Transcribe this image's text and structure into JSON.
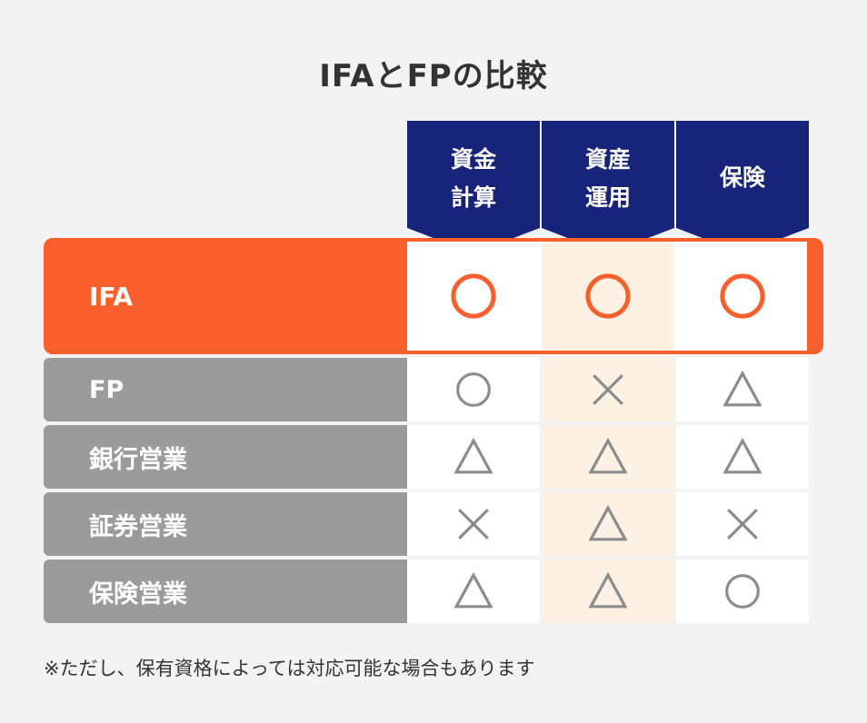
{
  "title": "IFAとFPの比較",
  "columns": [
    {
      "line1": "資金",
      "line2": "計算"
    },
    {
      "line1": "資産",
      "line2": "運用"
    },
    {
      "line1": "保険",
      "line2": ""
    }
  ],
  "rows": [
    {
      "label": "IFA",
      "marks": [
        "circle",
        "circle",
        "circle"
      ],
      "highlight": true
    },
    {
      "label": "FP",
      "marks": [
        "circle",
        "cross",
        "triangle"
      ]
    },
    {
      "label": "銀行営業",
      "marks": [
        "triangle",
        "triangle",
        "triangle"
      ]
    },
    {
      "label": "証券営業",
      "marks": [
        "cross",
        "triangle",
        "cross"
      ]
    },
    {
      "label": "保険営業",
      "marks": [
        "triangle",
        "triangle",
        "circle"
      ]
    }
  ],
  "note": "※ただし、保有資格によっては対応可能な場合もあります",
  "colors": {
    "header": "#172479",
    "ifa": "#f85f2c",
    "row_label": "#9b9b9b",
    "mark": "#8c8c8c",
    "highlight_column": "#fdf1e4"
  }
}
